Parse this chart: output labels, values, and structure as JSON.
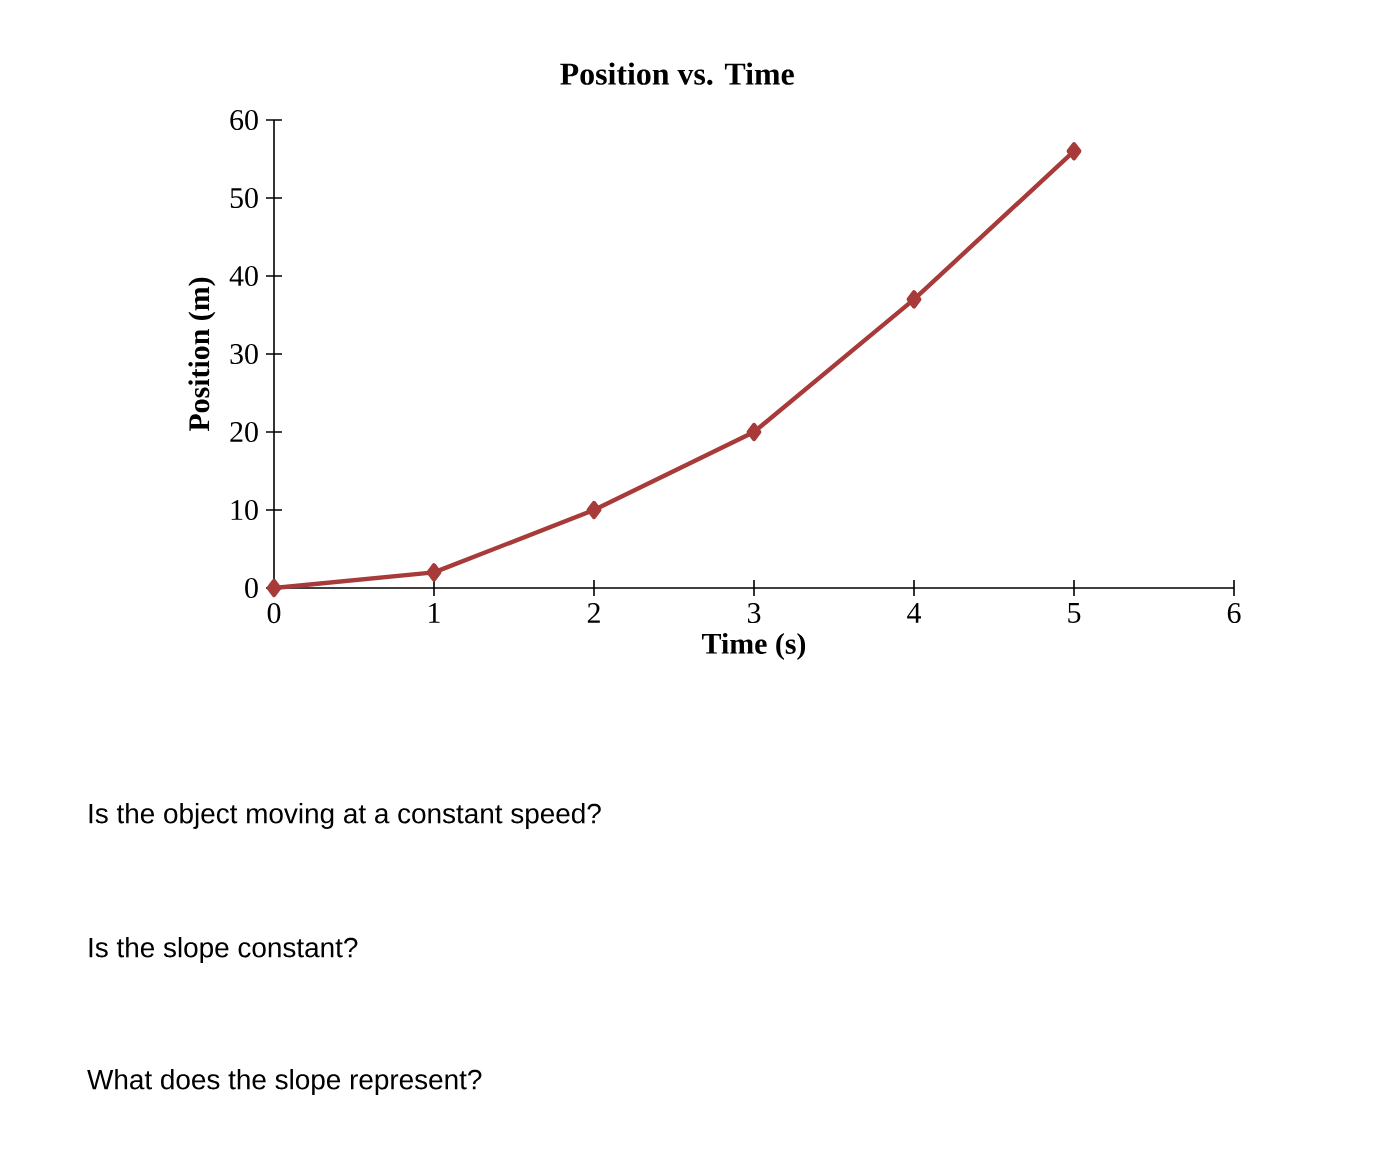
{
  "chart_data": {
    "type": "line",
    "title": "Position vs. Time",
    "xlabel": "Time (s)",
    "ylabel": "Position (m)",
    "x": [
      0,
      1,
      2,
      3,
      4,
      5
    ],
    "series": [
      {
        "color": "#a83a3a",
        "values": [
          0,
          2,
          10,
          20,
          37,
          56
        ]
      }
    ],
    "xlim": [
      0,
      6
    ],
    "ylim": [
      0,
      60
    ],
    "xticks": [
      0,
      1,
      2,
      3,
      4,
      5,
      6
    ],
    "yticks": [
      0,
      10,
      20,
      30,
      40,
      50,
      60
    ],
    "marker": "diamond",
    "line_style": "solid",
    "annotations": [
      "Is the object moving at a constant speed?",
      "Is the slope constant?",
      "What does the slope represent?"
    ]
  }
}
